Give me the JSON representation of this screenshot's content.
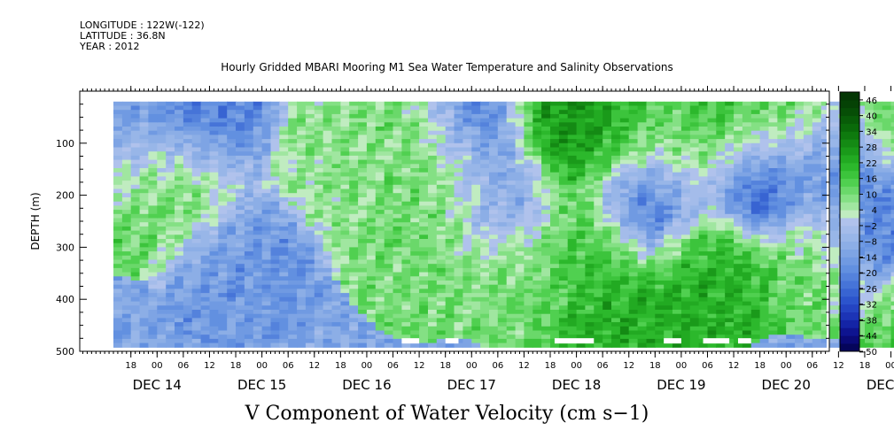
{
  "header": {
    "longitude": "LONGITUDE : 122W(-122)",
    "latitude": "LATITUDE : 36.8N",
    "year": "YEAR : 2012"
  },
  "title": "Hourly Gridded MBARI Mooring M1 Sea Water Temperature and Salinity Observations",
  "bottom_title": "V Component of Water Velocity (cm s−1)",
  "chart_data": {
    "type": "heatmap",
    "title": "Hourly Gridded MBARI Mooring M1 Sea Water Temperature and Salinity Observations",
    "ylabel": "DEPTH (m)",
    "xlabel": "",
    "variable": "V Component of Water Velocity (cm s−1)",
    "yaxis": {
      "range": [
        500,
        0
      ],
      "inverted": true,
      "ticks": [
        100,
        200,
        300,
        400,
        500
      ],
      "minor_step": 25
    },
    "xaxis": {
      "time_start": "2012-12-13T14:00",
      "time_end": "2012-12-21T12:00",
      "hour_ticks": [
        {
          "t": "2012-12-13T18:00",
          "label": "18"
        },
        {
          "t": "2012-12-14T00:00",
          "label": "00"
        },
        {
          "t": "2012-12-14T06:00",
          "label": "06"
        },
        {
          "t": "2012-12-14T12:00",
          "label": "12"
        },
        {
          "t": "2012-12-14T18:00",
          "label": "18"
        },
        {
          "t": "2012-12-15T00:00",
          "label": "00"
        },
        {
          "t": "2012-12-15T06:00",
          "label": "06"
        },
        {
          "t": "2012-12-15T12:00",
          "label": "12"
        },
        {
          "t": "2012-12-15T18:00",
          "label": "18"
        },
        {
          "t": "2012-12-16T00:00",
          "label": "00"
        },
        {
          "t": "2012-12-16T06:00",
          "label": "06"
        },
        {
          "t": "2012-12-16T12:00",
          "label": "12"
        },
        {
          "t": "2012-12-16T18:00",
          "label": "18"
        },
        {
          "t": "2012-12-17T00:00",
          "label": "00"
        },
        {
          "t": "2012-12-17T06:00",
          "label": "06"
        },
        {
          "t": "2012-12-17T12:00",
          "label": "12"
        },
        {
          "t": "2012-12-17T18:00",
          "label": "18"
        },
        {
          "t": "2012-12-18T00:00",
          "label": "00"
        },
        {
          "t": "2012-12-18T06:00",
          "label": "06"
        },
        {
          "t": "2012-12-18T12:00",
          "label": "12"
        },
        {
          "t": "2012-12-18T18:00",
          "label": "18"
        },
        {
          "t": "2012-12-19T00:00",
          "label": "00"
        },
        {
          "t": "2012-12-19T06:00",
          "label": "06"
        },
        {
          "t": "2012-12-19T12:00",
          "label": "12"
        },
        {
          "t": "2012-12-19T18:00",
          "label": "18"
        },
        {
          "t": "2012-12-20T00:00",
          "label": "00"
        },
        {
          "t": "2012-12-20T06:00",
          "label": "06"
        },
        {
          "t": "2012-12-20T12:00",
          "label": "12"
        },
        {
          "t": "2012-12-20T18:00",
          "label": "18"
        },
        {
          "t": "2012-12-21T00:00",
          "label": "00"
        },
        {
          "t": "2012-12-21T06:00",
          "label": "06"
        },
        {
          "t": "2012-12-21T12:00",
          "label": "12"
        }
      ],
      "date_labels": [
        {
          "t": "2012-12-14T00:00",
          "label": "DEC 14"
        },
        {
          "t": "2012-12-15T00:00",
          "label": "DEC 15"
        },
        {
          "t": "2012-12-16T00:00",
          "label": "DEC 16"
        },
        {
          "t": "2012-12-17T00:00",
          "label": "DEC 17"
        },
        {
          "t": "2012-12-18T00:00",
          "label": "DEC 18"
        },
        {
          "t": "2012-12-19T00:00",
          "label": "DEC 19"
        },
        {
          "t": "2012-12-20T00:00",
          "label": "DEC 20"
        },
        {
          "t": "2012-12-21T00:00",
          "label": "DEC 21"
        }
      ]
    },
    "colorbar": {
      "labels": [
        "46",
        "40",
        "34",
        "28",
        "22",
        "16",
        "10",
        "4",
        "−2",
        "−8",
        "−14",
        "−20",
        "−26",
        "−32",
        "−38",
        "−44",
        "−50"
      ],
      "levels": [
        -50,
        -47,
        -44,
        -41,
        -38,
        -35,
        -32,
        -29,
        -26,
        -23,
        -20,
        -17,
        -14,
        -11,
        -8,
        -5,
        -2,
        1,
        4,
        7,
        10,
        13,
        16,
        19,
        22,
        25,
        28,
        31,
        34,
        37,
        40,
        43,
        46,
        49
      ],
      "colors": [
        "#05055a",
        "#0a0a78",
        "#0e1490",
        "#1424a6",
        "#1c34b6",
        "#2444c2",
        "#2c54cc",
        "#3864d2",
        "#4674d8",
        "#5482dc",
        "#6290e0",
        "#709ae2",
        "#7ea4e4",
        "#8caee6",
        "#98b6e8",
        "#a4bcea",
        "#b0c2ec",
        "#c0ecc0",
        "#a0e6a0",
        "#84e084",
        "#6ad86a",
        "#50d050",
        "#3cc43c",
        "#2cb82c",
        "#22aa22",
        "#1a9a1a",
        "#148a14",
        "#0e7a0e",
        "#0a6a0a",
        "#085c08",
        "#064e06",
        "#054205",
        "#043604"
      ]
    },
    "depth_range_observed": [
      20,
      485
    ],
    "missing_data_spans": [
      {
        "t0": "2012-12-16T08:00",
        "t1": "2012-12-16T12:00",
        "depth": 485
      },
      {
        "t0": "2012-12-16T18:00",
        "t1": "2012-12-16T21:00",
        "depth": 485
      },
      {
        "t0": "2012-12-17T19:00",
        "t1": "2012-12-18T04:00",
        "depth": 485
      },
      {
        "t0": "2012-12-18T20:00",
        "t1": "2012-12-19T00:00",
        "depth": 485
      },
      {
        "t0": "2012-12-19T05:00",
        "t1": "2012-12-19T11:00",
        "depth": 485
      },
      {
        "t0": "2012-12-19T13:00",
        "t1": "2012-12-19T16:00",
        "depth": 485
      }
    ],
    "field_description": "Alternating bands: predominantly negative (blue, ~-10 to -30) with positive (green, ~+5 to +30) surface and column bands, notably Dec 17-18 surface and Dec 18 column, Dec 19 mid-water.",
    "field_anchors": [
      {
        "t": "2012-12-13T14:00",
        "depth": 100,
        "v": -18
      },
      {
        "t": "2012-12-13T15:00",
        "depth": 170,
        "v": 14
      },
      {
        "t": "2012-12-14T06:00",
        "depth": 180,
        "v": 12
      },
      {
        "t": "2012-12-14T10:00",
        "depth": 60,
        "v": -22
      },
      {
        "t": "2012-12-14T18:00",
        "depth": 320,
        "v": -16
      },
      {
        "t": "2012-12-15T16:00",
        "depth": 120,
        "v": 8
      },
      {
        "t": "2012-12-16T08:00",
        "depth": 60,
        "v": 10
      },
      {
        "t": "2012-12-16T12:00",
        "depth": 300,
        "v": 10
      },
      {
        "t": "2012-12-16T18:00",
        "depth": 160,
        "v": 12
      },
      {
        "t": "2012-12-17T00:00",
        "depth": 60,
        "v": -24
      },
      {
        "t": "2012-12-17T06:00",
        "depth": 200,
        "v": -14
      },
      {
        "t": "2012-12-17T12:00",
        "depth": 330,
        "v": 10
      },
      {
        "t": "2012-12-17T20:00",
        "depth": 60,
        "v": 26
      },
      {
        "t": "2012-12-18T00:00",
        "depth": 40,
        "v": 30
      },
      {
        "t": "2012-12-18T02:00",
        "depth": 300,
        "v": 18
      },
      {
        "t": "2012-12-18T08:00",
        "depth": 430,
        "v": 22
      },
      {
        "t": "2012-12-18T12:00",
        "depth": 80,
        "v": 16
      },
      {
        "t": "2012-12-18T16:00",
        "depth": 200,
        "v": -30
      },
      {
        "t": "2012-12-19T00:00",
        "depth": 120,
        "v": 12
      },
      {
        "t": "2012-12-19T05:00",
        "depth": 330,
        "v": 22
      },
      {
        "t": "2012-12-19T12:00",
        "depth": 60,
        "v": 20
      },
      {
        "t": "2012-12-19T18:00",
        "depth": 160,
        "v": -38
      },
      {
        "t": "2012-12-20T00:00",
        "depth": 80,
        "v": 14
      },
      {
        "t": "2012-12-20T06:00",
        "depth": 290,
        "v": 12
      },
      {
        "t": "2012-12-20T10:00",
        "depth": 140,
        "v": -20
      },
      {
        "t": "2012-12-20T18:00",
        "depth": 250,
        "v": -22
      },
      {
        "t": "2012-12-21T02:00",
        "depth": 70,
        "v": 16
      },
      {
        "t": "2012-12-21T04:00",
        "depth": 200,
        "v": -26
      },
      {
        "t": "2012-12-21T10:00",
        "depth": 140,
        "v": 12
      },
      {
        "t": "2012-12-21T10:00",
        "depth": 420,
        "v": 14
      }
    ]
  }
}
